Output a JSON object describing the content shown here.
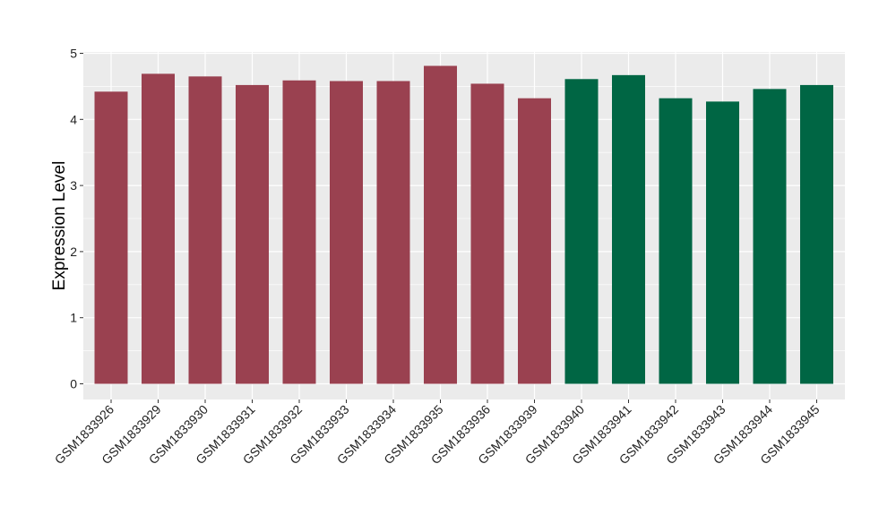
{
  "chart_data": {
    "type": "bar",
    "title": "",
    "xlabel": "",
    "ylabel": "Expression Level",
    "ylim": [
      0,
      5
    ],
    "yticks": [
      0,
      1,
      2,
      3,
      4,
      5
    ],
    "grid": true,
    "categories": [
      "GSM1833926",
      "GSM1833929",
      "GSM1833930",
      "GSM1833931",
      "GSM1833932",
      "GSM1833933",
      "GSM1833934",
      "GSM1833935",
      "GSM1833936",
      "GSM1833939",
      "GSM1833940",
      "GSM1833941",
      "GSM1833942",
      "GSM1833943",
      "GSM1833944",
      "GSM1833945"
    ],
    "values": [
      4.42,
      4.69,
      4.65,
      4.52,
      4.59,
      4.58,
      4.58,
      4.81,
      4.54,
      4.32,
      4.61,
      4.67,
      4.32,
      4.27,
      4.46,
      4.52
    ],
    "groups": [
      0,
      0,
      0,
      0,
      0,
      0,
      0,
      0,
      0,
      0,
      1,
      1,
      1,
      1,
      1,
      1
    ],
    "colors": [
      "#9a4150",
      "#006644"
    ],
    "panel_color": "#ebebeb"
  }
}
